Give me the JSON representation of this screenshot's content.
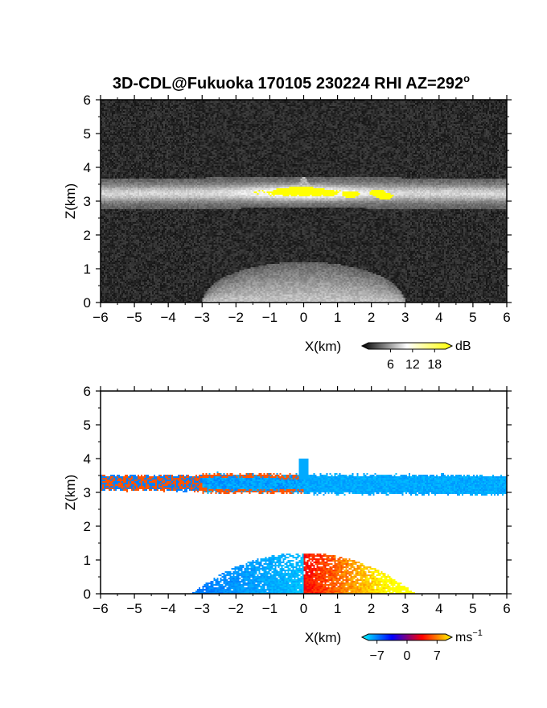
{
  "title": "3D-CDL@Fukuoka 170105 230224 RHI AZ=292",
  "title_sup": "o",
  "chart_data": [
    {
      "type": "heatmap",
      "quantity": "backscatter intensity",
      "xlabel": "X(km)",
      "ylabel": "Z(km)",
      "xlim": [
        -6,
        6
      ],
      "ylim": [
        0,
        6
      ],
      "xticks": [
        "−6",
        "−5",
        "−4",
        "−3",
        "−2",
        "−1",
        "0",
        "1",
        "2",
        "3",
        "4",
        "5",
        "6"
      ],
      "yticks": [
        "0",
        "1",
        "2",
        "3",
        "4",
        "5",
        "6"
      ],
      "colorbar": {
        "unit": "dB",
        "ticks": [
          "6",
          "12",
          "18"
        ],
        "range": [
          0,
          21
        ],
        "colors": [
          "#000000",
          "#ffffff",
          "#ffff00"
        ]
      },
      "features": {
        "cloud_layer": {
          "x_range": [
            -6,
            6
          ],
          "z_center": 3.25,
          "thickness": 0.35,
          "peak_dB": 18,
          "peak_x": 0
        },
        "high_values": [
          {
            "x": -0.6,
            "z": 3.3
          },
          {
            "x": -0.2,
            "z": 3.35
          },
          {
            "x": 0.1,
            "z": 3.35
          },
          {
            "x": 0.4,
            "z": 3.3
          },
          {
            "x": 0.7,
            "z": 3.25
          },
          {
            "x": 1.4,
            "z": 3.2
          },
          {
            "x": 2.2,
            "z": 3.25
          },
          {
            "x": 2.4,
            "z": 3.15
          }
        ],
        "boundary_layer": {
          "x_range": [
            -3,
            3
          ],
          "z_top": 1.2
        }
      }
    },
    {
      "type": "heatmap",
      "quantity": "radial velocity",
      "xlabel": "X(km)",
      "ylabel": "Z(km)",
      "xlim": [
        -6,
        6
      ],
      "ylim": [
        0,
        6
      ],
      "xticks": [
        "−6",
        "−5",
        "−4",
        "−3",
        "−2",
        "−1",
        "0",
        "1",
        "2",
        "3",
        "4",
        "5",
        "6"
      ],
      "yticks": [
        "0",
        "1",
        "2",
        "3",
        "4",
        "5",
        "6"
      ],
      "colorbar": {
        "unit": "ms",
        "unit_sup": "−1",
        "ticks": [
          "−7",
          "0",
          "7"
        ],
        "range": [
          -9,
          9
        ],
        "colors": [
          "#00ffff",
          "#0000ff",
          "#ff0000",
          "#ffff00"
        ]
      },
      "features": {
        "cloud_layer": {
          "x_range": [
            -6,
            6
          ],
          "z_center": 3.25,
          "thickness": 0.3,
          "velocity_west": 5,
          "velocity_east": -7
        },
        "boundary_layer": {
          "x_range": [
            -3,
            3.5
          ],
          "z_top": 1.2,
          "velocity_west": -8,
          "velocity_east": 8
        }
      }
    }
  ]
}
